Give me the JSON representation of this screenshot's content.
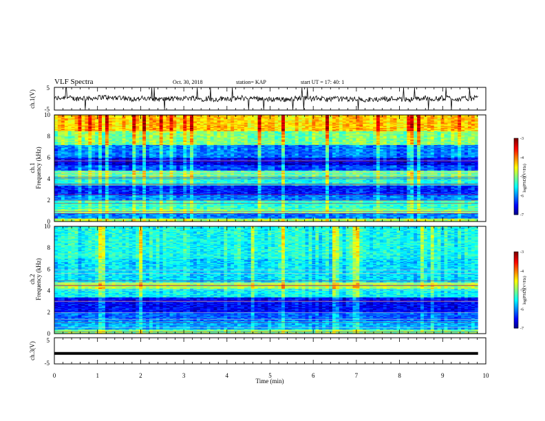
{
  "header": {
    "title": "VLF Spectra",
    "date": "Oct. 30, 2018",
    "station": "station= KAP",
    "start": "start  UT =   17: 40: 1"
  },
  "chart_data": [
    {
      "type": "line",
      "name": "ch1-waveform",
      "ylabel": "ch.1(V)",
      "ylim": [
        -5,
        5
      ],
      "yticks": [
        "5",
        "-5"
      ],
      "xlim": [
        0,
        10
      ],
      "x_end_data": 9.82,
      "approx_level": 0.0,
      "noise_amplitude": 1.6
    },
    {
      "type": "heatmap",
      "name": "ch1-spectrogram",
      "ylabel": "Frequency (kHz)",
      "channel": "ch.1",
      "ylim": [
        0,
        10
      ],
      "yticks": [
        "0",
        "2",
        "4",
        "6",
        "8",
        "10"
      ],
      "xlim": [
        0,
        10
      ],
      "x_end_data": 9.82,
      "colorbar": {
        "label": "log(PSD)(V²/Hz)",
        "min": -7,
        "max": -3,
        "ticks": [
          "-3",
          "-4",
          "-5",
          "-6",
          "-7"
        ]
      },
      "band_log_psd": [
        {
          "f_from": 0.0,
          "f_to": 0.3,
          "v": -4.8
        },
        {
          "f_from": 0.3,
          "f_to": 0.8,
          "v": -6.0
        },
        {
          "f_from": 0.8,
          "f_to": 1.2,
          "v": -5.0
        },
        {
          "f_from": 1.2,
          "f_to": 2.0,
          "v": -5.3
        },
        {
          "f_from": 2.0,
          "f_to": 2.5,
          "v": -6.0
        },
        {
          "f_from": 2.5,
          "f_to": 3.4,
          "v": -6.4
        },
        {
          "f_from": 3.4,
          "f_to": 4.2,
          "v": -5.4
        },
        {
          "f_from": 4.2,
          "f_to": 4.8,
          "v": -5.1
        },
        {
          "f_from": 4.8,
          "f_to": 5.3,
          "v": -6.2
        },
        {
          "f_from": 5.3,
          "f_to": 6.0,
          "v": -6.6
        },
        {
          "f_from": 6.0,
          "f_to": 7.2,
          "v": -6.0
        },
        {
          "f_from": 7.2,
          "f_to": 8.5,
          "v": -5.0
        },
        {
          "f_from": 8.5,
          "f_to": 10.0,
          "v": -4.3
        }
      ]
    },
    {
      "type": "heatmap",
      "name": "ch2-spectrogram",
      "ylabel": "Frequency (kHz)",
      "channel": "ch.2",
      "ylim": [
        0,
        10
      ],
      "yticks": [
        "0",
        "2",
        "4",
        "6",
        "8",
        "10"
      ],
      "xlim": [
        0,
        10
      ],
      "x_end_data": 9.82,
      "colorbar": {
        "label": "log(PSD)(V²/Hz)",
        "min": -7,
        "max": -3,
        "ticks": [
          "-3",
          "-4",
          "-5",
          "-6",
          "-7"
        ]
      },
      "band_log_psd": [
        {
          "f_from": 0.0,
          "f_to": 0.4,
          "v": -5.0
        },
        {
          "f_from": 0.4,
          "f_to": 1.2,
          "v": -5.8
        },
        {
          "f_from": 1.2,
          "f_to": 2.0,
          "v": -6.1
        },
        {
          "f_from": 2.0,
          "f_to": 3.4,
          "v": -6.5
        },
        {
          "f_from": 3.4,
          "f_to": 4.2,
          "v": -5.5
        },
        {
          "f_from": 4.2,
          "f_to": 4.8,
          "v": -4.8
        },
        {
          "f_from": 4.8,
          "f_to": 5.6,
          "v": -5.6
        },
        {
          "f_from": 5.6,
          "f_to": 7.0,
          "v": -5.6
        },
        {
          "f_from": 7.0,
          "f_to": 10.0,
          "v": -5.4
        }
      ]
    },
    {
      "type": "line",
      "name": "ch3-waveform",
      "ylabel": "ch.3(V)",
      "ylim": [
        -5,
        5
      ],
      "yticks": [
        "5",
        "-5"
      ],
      "xlim": [
        0,
        10
      ],
      "x_end_data": 9.82,
      "approx_level": -1.0
    }
  ],
  "x_axis": {
    "label": "Time  (min)",
    "ticks": [
      "0",
      "1",
      "2",
      "3",
      "4",
      "5",
      "6",
      "7",
      "8",
      "9",
      "10"
    ]
  }
}
